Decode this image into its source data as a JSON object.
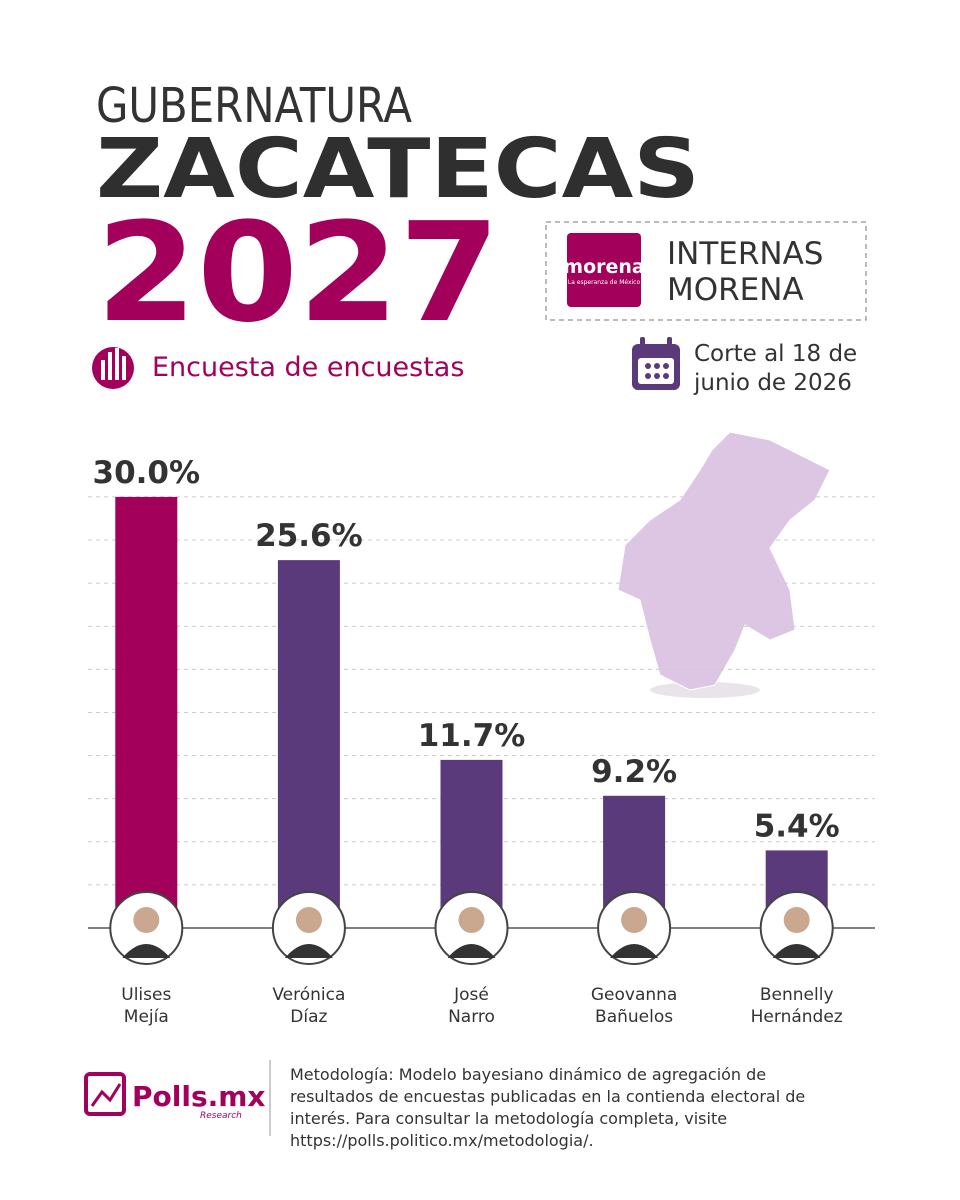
{
  "header": {
    "overline": "GUBERNATURA",
    "title": "ZACATECAS",
    "year": "2027",
    "subtitle": "Encuesta de encuestas",
    "logo_text": "morena",
    "logo_tagline": "La esperanza de México",
    "badge": "INTERNAS MORENA",
    "cutoff": "Corte al 18 de junio de 2026"
  },
  "chart_data": {
    "type": "bar",
    "categories": [
      "Ulises Mejía",
      "Verónica Díaz",
      "José Narro",
      "Geovanna Bañuelos",
      "Bennelly Hernández"
    ],
    "values": [
      30.0,
      25.6,
      11.7,
      9.2,
      5.4
    ],
    "value_labels": [
      "30.0%",
      "25.6%",
      "11.7%",
      "9.2%",
      "5.4%"
    ],
    "colors": [
      "#a3005c",
      "#5a3a7a",
      "#5a3a7a",
      "#5a3a7a",
      "#5a3a7a"
    ],
    "ylim": [
      0,
      31
    ],
    "yticks": [
      3,
      6,
      9,
      12,
      15,
      18,
      21,
      24,
      27,
      30
    ],
    "grid": true
  },
  "footer": {
    "brand": "Polls.mx",
    "brand_sub": "Research",
    "methodology": "Metodología: Modelo bayesiano dinámico de agregación de resultados de encuestas publicadas en la contienda electoral de interés. Para consultar la metodología completa, visite https://polls.politico.mx/metodologia/."
  }
}
